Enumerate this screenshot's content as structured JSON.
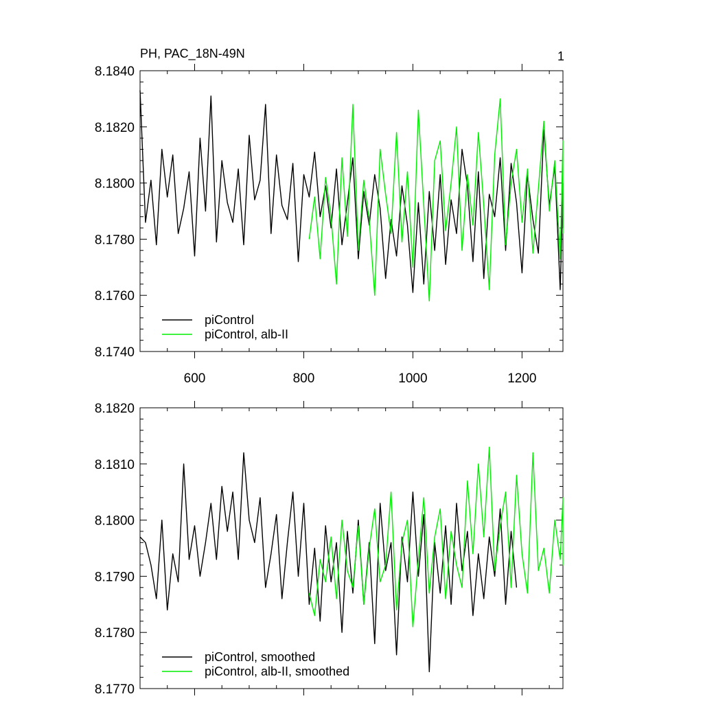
{
  "figure": {
    "title_left": "PH, PAC_18N-49N",
    "title_right": "1"
  },
  "chart_data": [
    {
      "type": "line",
      "title": "PH, PAC_18N-49N",
      "xlim": [
        500,
        1275
      ],
      "ylim": [
        8.174,
        8.184
      ],
      "x_ticks": [
        600,
        800,
        1000,
        1200
      ],
      "x_tick_labels": [
        "600",
        "800",
        "1000",
        "1200"
      ],
      "y_ticks": [
        8.174,
        8.176,
        8.178,
        8.18,
        8.182,
        8.184
      ],
      "y_tick_labels": [
        "8.1740",
        "8.1760",
        "8.1780",
        "8.1800",
        "8.1820",
        "8.1840"
      ],
      "legend": "bottom-left",
      "series": [
        {
          "name": "piControl",
          "color": "#000000",
          "x_start": 500,
          "x_step": 10,
          "values": [
            8.1833,
            8.1786,
            8.1801,
            8.1778,
            8.1812,
            8.1795,
            8.181,
            8.1782,
            8.1791,
            8.1804,
            8.1774,
            8.1816,
            8.179,
            8.1831,
            8.1779,
            8.1808,
            8.1793,
            8.1786,
            8.1805,
            8.1778,
            8.1817,
            8.1794,
            8.1801,
            8.1828,
            8.1782,
            8.181,
            8.1792,
            8.1787,
            8.1807,
            8.1772,
            8.1803,
            8.1795,
            8.1811,
            8.1788,
            8.1799,
            8.1784,
            8.1805,
            8.1778,
            8.1793,
            8.1809,
            8.1773,
            8.1797,
            8.1785,
            8.1803,
            8.1791,
            8.1766,
            8.1787,
            8.1774,
            8.1799,
            8.1785,
            8.1761,
            8.1793,
            8.1764,
            8.1797,
            8.1776,
            8.1803,
            8.1771,
            8.1794,
            8.1782,
            8.1812,
            8.1799,
            8.1772,
            8.1804,
            8.1766,
            8.1796,
            8.1788,
            8.1809,
            8.1776,
            8.1807,
            8.1793,
            8.1768,
            8.1803,
            8.1787,
            8.1775,
            8.1819,
            8.1792,
            8.1806,
            8.1762,
            8.1798,
            8.1784,
            8.18
          ]
        },
        {
          "name": "piControl, alb-II",
          "color": "#00ee00",
          "x_start": 810,
          "x_step": 10,
          "values": [
            8.178,
            8.1795,
            8.1773,
            8.1802,
            8.1788,
            8.1764,
            8.1809,
            8.1781,
            8.1828,
            8.1776,
            8.1801,
            8.1787,
            8.176,
            8.1812,
            8.1796,
            8.1782,
            8.1818,
            8.1779,
            8.1804,
            8.177,
            8.1826,
            8.1792,
            8.1758,
            8.1808,
            8.1815,
            8.1783,
            8.18,
            8.182,
            8.1776,
            8.1803,
            8.1785,
            8.1818,
            8.1792,
            8.1762,
            8.181,
            8.183,
            8.1778,
            8.18,
            8.1812,
            8.1786,
            8.1805,
            8.1775,
            8.1798,
            8.1822,
            8.179,
            8.1808,
            8.1773,
            8.1815,
            8.1796,
            8.1784,
            8.1803,
            8.1782
          ]
        }
      ]
    },
    {
      "type": "line",
      "xlim": [
        500,
        1275
      ],
      "ylim": [
        8.177,
        8.182
      ],
      "x_ticks": [
        600,
        800,
        1000,
        1200
      ],
      "y_ticks": [
        8.177,
        8.178,
        8.179,
        8.18,
        8.181,
        8.182
      ],
      "y_tick_labels": [
        "8.1770",
        "8.1780",
        "8.1790",
        "8.1800",
        "8.1810",
        "8.1820"
      ],
      "legend": "bottom-left",
      "series": [
        {
          "name": "piControl, smoothed",
          "color": "#000000",
          "x_start": 500,
          "x_step": 10,
          "values": [
            8.1797,
            8.1796,
            8.1792,
            8.1786,
            8.18,
            8.1784,
            8.1794,
            8.1789,
            8.181,
            8.1793,
            8.1799,
            8.179,
            8.1796,
            8.1803,
            8.1793,
            8.1806,
            8.1798,
            8.1805,
            8.1793,
            8.1812,
            8.18,
            8.1796,
            8.1804,
            8.1788,
            8.1794,
            8.1801,
            8.1786,
            8.1796,
            8.1805,
            8.179,
            8.1803,
            8.1785,
            8.1795,
            8.1782,
            8.1799,
            8.1789,
            8.1796,
            8.178,
            8.1798,
            8.1787,
            8.18,
            8.1785,
            8.1796,
            8.1778,
            8.1803,
            8.1791,
            8.1796,
            8.1776,
            8.1797,
            8.1789,
            8.1805,
            8.179,
            8.1801,
            8.1773,
            8.1796,
            8.1787,
            8.1799,
            8.1785,
            8.1803,
            8.1791,
            8.1798,
            8.1783,
            8.1794,
            8.1786,
            8.1797,
            8.179,
            8.1802,
            8.1785,
            8.1798,
            8.1788
          ]
        },
        {
          "name": "piControl, alb-II, smoothed",
          "color": "#00ee00",
          "x_start": 810,
          "x_step": 10,
          "values": [
            8.1787,
            8.1783,
            8.1793,
            8.1789,
            8.1797,
            8.1786,
            8.18,
            8.1791,
            8.1788,
            8.1799,
            8.1785,
            8.1795,
            8.1802,
            8.1789,
            8.1792,
            8.1805,
            8.1784,
            8.1796,
            8.18,
            8.1781,
            8.1793,
            8.1804,
            8.1787,
            8.1797,
            8.1802,
            8.1786,
            8.1798,
            8.1792,
            8.1788,
            8.1807,
            8.1794,
            8.181,
            8.1797,
            8.1813,
            8.1791,
            8.1799,
            8.1805,
            8.1788,
            8.1808,
            8.1794,
            8.1787,
            8.1812,
            8.1791,
            8.1795,
            8.1787,
            8.18,
            8.1793,
            8.1804,
            8.1792,
            8.18
          ]
        }
      ]
    }
  ]
}
